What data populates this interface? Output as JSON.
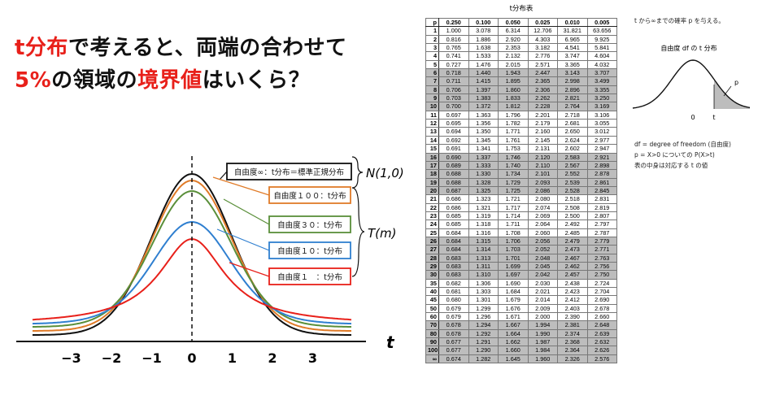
{
  "headline": {
    "line1_parts": [
      {
        "text": "t分布",
        "color": "red"
      },
      {
        "text": "で考えると、両端の合わせて",
        "color": "black"
      }
    ],
    "line2_parts": [
      {
        "text": "5%",
        "color": "red"
      },
      {
        "text": "の領域の",
        "color": "black"
      },
      {
        "text": "境界値",
        "color": "red"
      },
      {
        "text": "はいくら？",
        "color": "black"
      }
    ]
  },
  "diagram": {
    "axis_label": "t",
    "ticks": [
      "−3",
      "−2",
      "−1",
      "0",
      "1",
      "2",
      "3"
    ],
    "curves": [
      {
        "df_label": "自由度∞：t分布＝標準正規分布",
        "color": "#111111",
        "df": "inf"
      },
      {
        "df_label": "自由度１００：t分布",
        "color": "#e07b28",
        "df": 100
      },
      {
        "df_label": "自由度３０：t分布",
        "color": "#5a8f3a",
        "df": 30
      },
      {
        "df_label": "自由度１０：t分布",
        "color": "#2f7fd0",
        "df": 10
      },
      {
        "df_label": "自由度１　：t分布",
        "color": "#e8201a",
        "df": 1
      }
    ],
    "normal_label": "N(1,0)",
    "t_label": "T(m)"
  },
  "table": {
    "title": "t分布表",
    "corner": "p",
    "columns": [
      "0.250",
      "0.100",
      "0.050",
      "0.025",
      "0.010",
      "0.005"
    ],
    "rows": [
      [
        "1",
        "1.000",
        "3.078",
        "6.314",
        "12.706",
        "31.821",
        "63.656"
      ],
      [
        "2",
        "0.816",
        "1.886",
        "2.920",
        "4.303",
        "6.965",
        "9.925"
      ],
      [
        "3",
        "0.765",
        "1.638",
        "2.353",
        "3.182",
        "4.541",
        "5.841"
      ],
      [
        "4",
        "0.741",
        "1.533",
        "2.132",
        "2.776",
        "3.747",
        "4.604"
      ],
      [
        "5",
        "0.727",
        "1.476",
        "2.015",
        "2.571",
        "3.365",
        "4.032"
      ],
      [
        "6",
        "0.718",
        "1.440",
        "1.943",
        "2.447",
        "3.143",
        "3.707"
      ],
      [
        "7",
        "0.711",
        "1.415",
        "1.895",
        "2.365",
        "2.998",
        "3.499"
      ],
      [
        "8",
        "0.706",
        "1.397",
        "1.860",
        "2.306",
        "2.896",
        "3.355"
      ],
      [
        "9",
        "0.703",
        "1.383",
        "1.833",
        "2.262",
        "2.821",
        "3.250"
      ],
      [
        "10",
        "0.700",
        "1.372",
        "1.812",
        "2.228",
        "2.764",
        "3.169"
      ],
      [
        "11",
        "0.697",
        "1.363",
        "1.796",
        "2.201",
        "2.718",
        "3.106"
      ],
      [
        "12",
        "0.695",
        "1.356",
        "1.782",
        "2.179",
        "2.681",
        "3.055"
      ],
      [
        "13",
        "0.694",
        "1.350",
        "1.771",
        "2.160",
        "2.650",
        "3.012"
      ],
      [
        "14",
        "0.692",
        "1.345",
        "1.761",
        "2.145",
        "2.624",
        "2.977"
      ],
      [
        "15",
        "0.691",
        "1.341",
        "1.753",
        "2.131",
        "2.602",
        "2.947"
      ],
      [
        "16",
        "0.690",
        "1.337",
        "1.746",
        "2.120",
        "2.583",
        "2.921"
      ],
      [
        "17",
        "0.689",
        "1.333",
        "1.740",
        "2.110",
        "2.567",
        "2.898"
      ],
      [
        "18",
        "0.688",
        "1.330",
        "1.734",
        "2.101",
        "2.552",
        "2.878"
      ],
      [
        "19",
        "0.688",
        "1.328",
        "1.729",
        "2.093",
        "2.539",
        "2.861"
      ],
      [
        "20",
        "0.687",
        "1.325",
        "1.725",
        "2.086",
        "2.528",
        "2.845"
      ],
      [
        "21",
        "0.686",
        "1.323",
        "1.721",
        "2.080",
        "2.518",
        "2.831"
      ],
      [
        "22",
        "0.686",
        "1.321",
        "1.717",
        "2.074",
        "2.508",
        "2.819"
      ],
      [
        "23",
        "0.685",
        "1.319",
        "1.714",
        "2.069",
        "2.500",
        "2.807"
      ],
      [
        "24",
        "0.685",
        "1.318",
        "1.711",
        "2.064",
        "2.492",
        "2.797"
      ],
      [
        "25",
        "0.684",
        "1.316",
        "1.708",
        "2.060",
        "2.485",
        "2.787"
      ],
      [
        "26",
        "0.684",
        "1.315",
        "1.706",
        "2.056",
        "2.479",
        "2.779"
      ],
      [
        "27",
        "0.684",
        "1.314",
        "1.703",
        "2.052",
        "2.473",
        "2.771"
      ],
      [
        "28",
        "0.683",
        "1.313",
        "1.701",
        "2.048",
        "2.467",
        "2.763"
      ],
      [
        "29",
        "0.683",
        "1.311",
        "1.699",
        "2.045",
        "2.462",
        "2.756"
      ],
      [
        "30",
        "0.683",
        "1.310",
        "1.697",
        "2.042",
        "2.457",
        "2.750"
      ],
      [
        "35",
        "0.682",
        "1.306",
        "1.690",
        "2.030",
        "2.438",
        "2.724"
      ],
      [
        "40",
        "0.681",
        "1.303",
        "1.684",
        "2.021",
        "2.423",
        "2.704"
      ],
      [
        "45",
        "0.680",
        "1.301",
        "1.679",
        "2.014",
        "2.412",
        "2.690"
      ],
      [
        "50",
        "0.679",
        "1.299",
        "1.676",
        "2.009",
        "2.403",
        "2.678"
      ],
      [
        "60",
        "0.679",
        "1.296",
        "1.671",
        "2.000",
        "2.390",
        "2.660"
      ],
      [
        "70",
        "0.678",
        "1.294",
        "1.667",
        "1.994",
        "2.381",
        "2.648"
      ],
      [
        "80",
        "0.678",
        "1.292",
        "1.664",
        "1.990",
        "2.374",
        "2.639"
      ],
      [
        "90",
        "0.677",
        "1.291",
        "1.662",
        "1.987",
        "2.368",
        "2.632"
      ],
      [
        "100",
        "0.677",
        "1.290",
        "1.660",
        "1.984",
        "2.364",
        "2.626"
      ],
      [
        "∞",
        "0.674",
        "1.282",
        "1.645",
        "1.960",
        "2.326",
        "2.576"
      ]
    ],
    "shaded_rows": [
      "6",
      "7",
      "8",
      "9",
      "10",
      "16",
      "17",
      "18",
      "19",
      "20",
      "26",
      "27",
      "28",
      "29",
      "30",
      "70",
      "80",
      "90",
      "100",
      "∞"
    ]
  },
  "side": {
    "top_note": "t から∞までの確率 p を与える。",
    "inset_title": "自由度 df の t 分布",
    "inset_p": "p",
    "inset_zero": "0",
    "inset_t": "t",
    "notes": [
      "df = degree of freedom (自由度)",
      "p = X>0 についての P(X>t)",
      "表の中身は対応する t の値"
    ]
  }
}
